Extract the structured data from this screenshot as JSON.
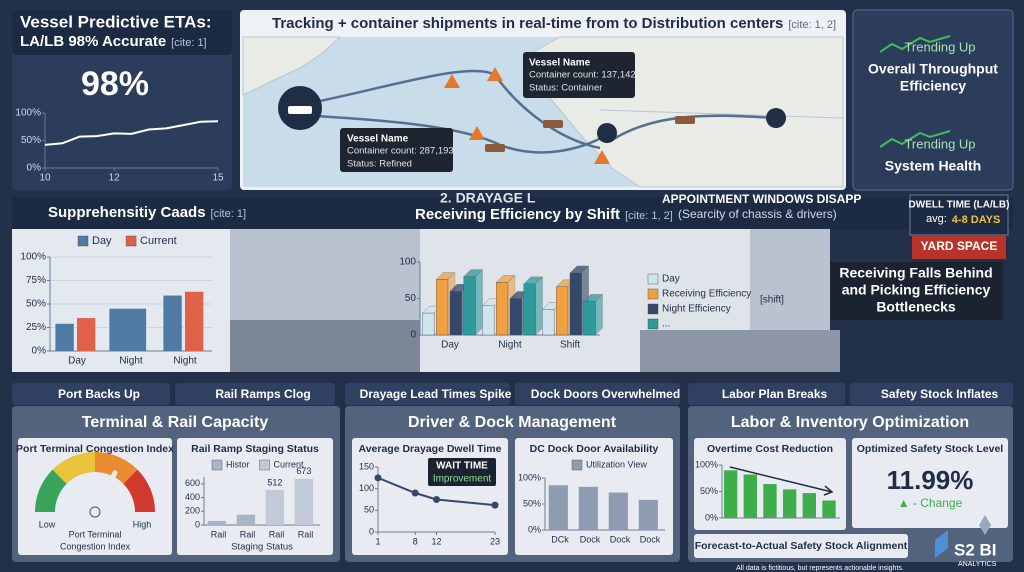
{
  "eta": {
    "title1": "Vessel Predictive ETAs:",
    "title2": "LA/LB 98% Accurate",
    "cite": "[cite: 1]",
    "stat": "98%",
    "chart": {
      "type": "line",
      "color": "#ffffff",
      "x": [
        10,
        10.5,
        11,
        11.5,
        12,
        12.5,
        13,
        13.5,
        14,
        14.5,
        15
      ],
      "values": [
        42,
        45,
        57,
        58,
        63,
        62,
        70,
        72,
        78,
        84,
        85
      ],
      "xlim": [
        10,
        15
      ],
      "xticks": [
        10,
        12,
        15
      ],
      "ylim": [
        0,
        100
      ],
      "yticks": [
        {
          "value": 0,
          "label": "0%"
        },
        {
          "value": 50,
          "label": "50%"
        },
        {
          "value": 100,
          "label": "100%"
        }
      ]
    }
  },
  "map": {
    "title": "Tracking + container shipments in real-time from to Distribution centers",
    "cite": "[cite: 1, 2]",
    "tips": [
      {
        "name": "Vessel Name",
        "count": "Container count: 137,142",
        "status": "Status: Container"
      },
      {
        "name": "Vessel Name",
        "count": "Container count: 287,193",
        "status": "Status: Refined"
      }
    ]
  },
  "trend": [
    {
      "label": "Trending Up",
      "metric": "Overall Throughput",
      "metric2": "Efficiency"
    },
    {
      "label": "Trending Up",
      "metric": "System Health"
    }
  ],
  "band": {
    "title": "Supprehensitiy Caads",
    "cite": "[cite: 1]",
    "heading": "2. DRAYAGE L",
    "title2": "Receiving Efficiency by Shift",
    "cite2": "[cite: 1, 2]",
    "alert": "APPOINTMENT WINDOWS DISAPP",
    "alert_sub": "(Searcity of chassis & drivers)",
    "dwell": "DWELL TIME (LA/LB)",
    "dwell_avg": "avg:",
    "dwell_val": "4-8 DAYS",
    "yard": "YARD SPACE",
    "callout": [
      "Receiving Falls Behind",
      "and Picking Efficiency",
      "Bottlenecks"
    ]
  },
  "shift_chart": {
    "type": "bar",
    "categories": [
      "Day",
      "Night",
      "Night"
    ],
    "series": [
      {
        "name": "Day",
        "color": "#4f7aa3",
        "values": [
          29,
          45,
          59
        ]
      },
      {
        "name": "Current",
        "color": "#e0604a",
        "values": [
          35,
          null,
          63
        ]
      }
    ],
    "ylim": [
      0,
      100
    ],
    "yticks": [
      {
        "value": 0,
        "label": "0%"
      },
      {
        "value": 25,
        "label": "25%"
      },
      {
        "value": 50,
        "label": "50%"
      },
      {
        "value": 75,
        "label": "75%"
      },
      {
        "value": 100,
        "label": "100%"
      }
    ],
    "grid": true
  },
  "eff_chart": {
    "type": "bar",
    "categories": [
      "Day",
      "Night",
      "Shift"
    ],
    "series": [
      {
        "name": "Day",
        "color": "#cfe5ee",
        "values": [
          30,
          40,
          35
        ]
      },
      {
        "name": "Receiving Efficiency",
        "color": "#f0a040",
        "values": [
          76,
          72,
          66
        ]
      },
      {
        "name": "Night Efficiency",
        "color": "#34486a",
        "values": [
          60,
          50,
          85
        ]
      },
      {
        "name": "...",
        "color": "#2f9a9a",
        "values": [
          80,
          70,
          46
        ]
      }
    ],
    "ylim": [
      0,
      100
    ],
    "yticks": [
      0,
      50,
      100
    ],
    "note": "[shift]"
  },
  "tabs": [
    "Port Backs Up",
    "Rail Ramps Clog",
    "Drayage Lead Times Spike",
    "Dock Doors Overwhelmed",
    "Labor Plan Breaks",
    "Safety Stock Inflates"
  ],
  "terminal": {
    "title": "Terminal & Rail Capacity",
    "gauge": {
      "title": "Port Terminal Congestion Index",
      "value": 65,
      "lim": [
        0,
        100
      ],
      "low": "Low",
      "high": "High",
      "caption1": "Port Terminal",
      "caption2": "Congestion Index"
    },
    "rail": {
      "type": "bar",
      "title": "Rail Ramp Staging Status",
      "categories": [
        "Rail",
        "Rail",
        "Rail",
        "Rail"
      ],
      "series": [
        {
          "name": "Histor",
          "color": "#a9b4c4",
          "values": [
            60,
            150,
            null,
            null
          ]
        },
        {
          "name": "Current",
          "color": "#c2cad7",
          "values": [
            null,
            null,
            512,
            673
          ],
          "data_labels": true
        }
      ],
      "ylim": [
        0,
        700
      ],
      "yticks": [
        0,
        200,
        400,
        600
      ],
      "xlabel": "Staging Status"
    }
  },
  "driver": {
    "title": "Driver & Dock Management",
    "dwell": {
      "type": "line",
      "title": "Average Drayage Dwell Time",
      "color": "#34486a",
      "x": [
        1,
        8,
        12,
        23
      ],
      "values": [
        125,
        90,
        75,
        62
      ],
      "xlim": [
        1,
        23
      ],
      "xticks": [
        1,
        8,
        12,
        23
      ],
      "ylim": [
        0,
        150
      ],
      "yticks": [
        0,
        50,
        100,
        150
      ],
      "callout": "WAIT TIME",
      "callout2": "Improvement"
    },
    "dock": {
      "type": "bar",
      "title": "DC Dock Door Availability",
      "categories": [
        "DCk",
        "Dock",
        "Dock",
        "Dock"
      ],
      "series": [
        {
          "name": "Utilization View",
          "color": "#8e9bb0",
          "values": [
            86,
            83,
            72,
            58
          ]
        }
      ],
      "ylim": [
        0,
        100
      ],
      "yticks": [
        {
          "value": 0,
          "label": "0%"
        },
        {
          "value": 50,
          "label": "50%"
        },
        {
          "value": 100,
          "label": "100%"
        }
      ]
    }
  },
  "labor": {
    "title": "Labor & Inventory Optimization",
    "overtime": {
      "type": "bar",
      "title": "Overtime Cost Reduction",
      "color": "#3fae4a",
      "categories": [
        null,
        null,
        null,
        null,
        null,
        null
      ],
      "values": [
        90,
        82,
        64,
        54,
        47,
        33
      ],
      "ylim": [
        0,
        100
      ],
      "yticks": [
        {
          "value": 0,
          "label": "0%"
        },
        {
          "value": 50,
          "label": "50%"
        },
        {
          "value": 100,
          "label": "100%"
        }
      ]
    },
    "safety": {
      "title": "Optimized Safety Stock Level",
      "stat": "11.99%",
      "change": "▲ - Change"
    },
    "footer": "Forecast-to-Actual Safety Stock Alignment"
  },
  "logo": {
    "name": "S2 BI",
    "sub": "ANALYTICS"
  },
  "note": "All data is fictitious, but represents actionable insights."
}
